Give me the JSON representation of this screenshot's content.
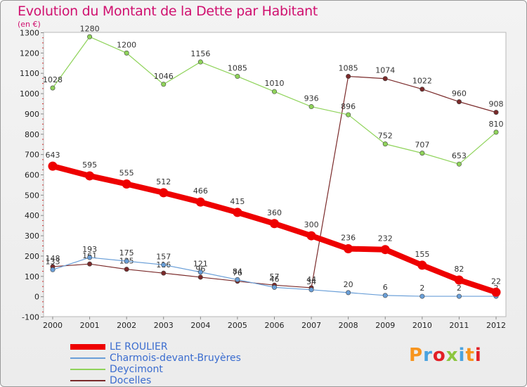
{
  "header": {
    "title": "Evolution du Montant de la Dette par Habitant",
    "subtitle": "(en €)"
  },
  "brand": {
    "text": "Proxiti",
    "colors": [
      "#f7941d",
      "#4aa3df",
      "#e21f26",
      "#8dc63f",
      "#4aa3df",
      "#f7941d",
      "#e21f26"
    ]
  },
  "chart_data": {
    "type": "line",
    "title": "Evolution du Montant de la Dette par Habitant",
    "ylabel": "(en €)",
    "xlabel": "",
    "x": [
      "2000",
      "2001",
      "2002",
      "2003",
      "2004",
      "2005",
      "2006",
      "2007",
      "2008",
      "2009",
      "2010",
      "2011",
      "2012"
    ],
    "ylim": [
      -100,
      1300
    ],
    "yticks": [
      -100,
      0,
      100,
      200,
      300,
      400,
      500,
      600,
      700,
      800,
      900,
      1000,
      1100,
      1200,
      1300
    ],
    "grid": false,
    "legend_position": "bottom-left",
    "series": [
      {
        "name": "LE ROULIER",
        "color": "#ee0000",
        "values": [
          643,
          595,
          555,
          512,
          466,
          415,
          360,
          300,
          236,
          232,
          155,
          82,
          22
        ]
      },
      {
        "name": "Charmois-devant-Bruyères",
        "color": "#6a9fd8",
        "values": [
          133,
          193,
          175,
          157,
          121,
          84,
          46,
          34,
          20,
          6,
          2,
          2,
          2
        ]
      },
      {
        "name": "Deycimont",
        "color": "#8fd35a",
        "values": [
          1028,
          1280,
          1200,
          1046,
          1156,
          1085,
          1010,
          936,
          896,
          752,
          707,
          653,
          810
        ]
      },
      {
        "name": "Docelles",
        "color": "#7a2a2a",
        "values": [
          148,
          161,
          135,
          116,
          96,
          76,
          57,
          44,
          1085,
          1074,
          1022,
          960,
          908
        ]
      }
    ]
  }
}
